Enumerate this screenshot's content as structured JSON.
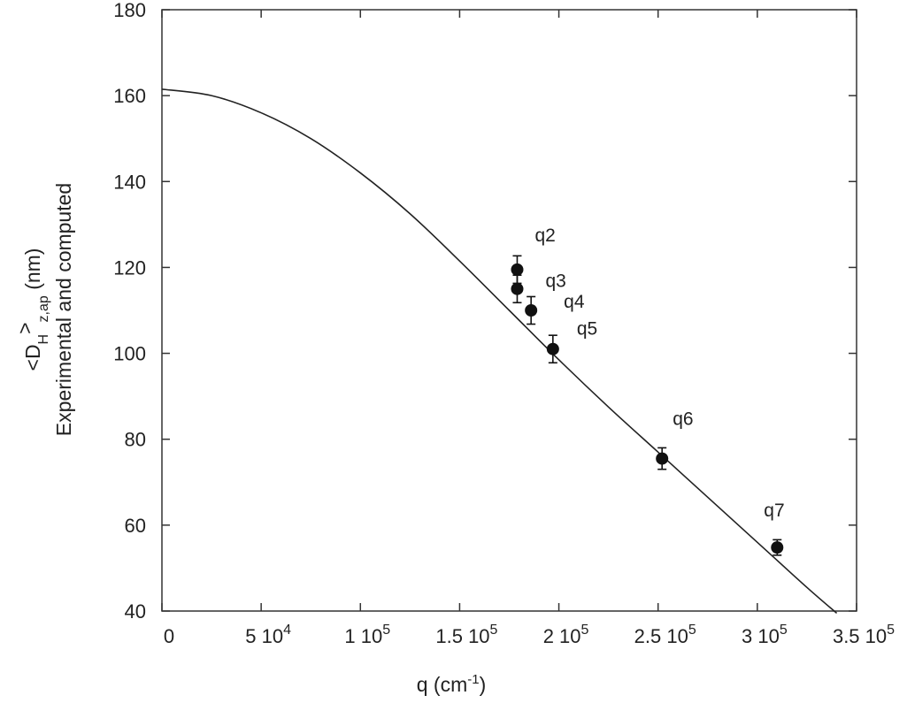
{
  "chart_data": {
    "type": "scatter",
    "xlabel": {
      "base": "q (cm",
      "sup": "-1",
      "close": ")"
    },
    "ylabel": {
      "line1": {
        "prefix": "<D",
        "sub1": "H",
        "gt": ">",
        "sub2": "z,ap",
        "suffix": " (nm)"
      },
      "line2": "Experimental and computed"
    },
    "xlim": [
      0,
      350000
    ],
    "ylim": [
      40,
      180
    ],
    "x_ticks": [
      {
        "value": 0,
        "mant": "0",
        "exp": ""
      },
      {
        "value": 50000,
        "mant": "5 10",
        "exp": "4"
      },
      {
        "value": 100000,
        "mant": "1 10",
        "exp": "5"
      },
      {
        "value": 150000,
        "mant": "1.5 10",
        "exp": "5"
      },
      {
        "value": 200000,
        "mant": "2 10",
        "exp": "5"
      },
      {
        "value": 250000,
        "mant": "2.5 10",
        "exp": "5"
      },
      {
        "value": 300000,
        "mant": "3 10",
        "exp": "5"
      },
      {
        "value": 350000,
        "mant": "3.5 10",
        "exp": "5"
      }
    ],
    "y_ticks": [
      "40",
      "60",
      "80",
      "100",
      "120",
      "140",
      "160",
      "180"
    ],
    "grid": false,
    "points": [
      {
        "label": "q2",
        "x": 179000,
        "y": 119.5,
        "err": 3.2
      },
      {
        "label": "q3",
        "x": 179000,
        "y": 115,
        "err": 3.2
      },
      {
        "label": "q4",
        "x": 186000,
        "y": 110,
        "err": 3.2
      },
      {
        "label": "q5",
        "x": 197000,
        "y": 101,
        "err": 3.2
      },
      {
        "label": "q6",
        "x": 252000,
        "y": 75.5,
        "err": 2.5
      },
      {
        "label": "q7",
        "x": 310000,
        "y": 54.8,
        "err": 1.8
      }
    ],
    "curve": {
      "x": [
        0,
        25000,
        50000,
        75000,
        100000,
        125000,
        150000,
        175000,
        200000,
        225000,
        250000,
        275000,
        300000,
        325000,
        340000
      ],
      "y": [
        161.5,
        160,
        156,
        150,
        142,
        132.5,
        121.5,
        110,
        98.5,
        87.5,
        77,
        66.5,
        56,
        45.5,
        39.5
      ]
    },
    "colors": {
      "points": "#111111",
      "curve": "#222222",
      "axis": "#333333"
    }
  }
}
